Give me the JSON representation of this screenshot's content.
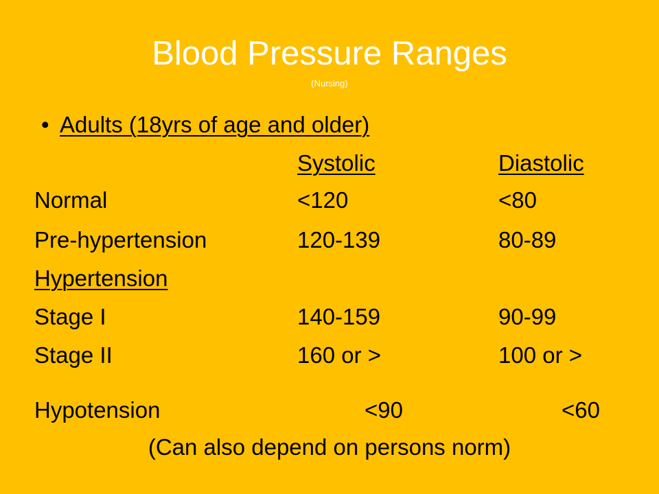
{
  "title": "Blood Pressure Ranges",
  "subtitle": "(Nursing)",
  "bullet": "•",
  "heading": "Adults (18yrs of age and older)",
  "columns": {
    "systolic": "Systolic",
    "diastolic": "Diastolic"
  },
  "rows": [
    {
      "label": "Normal",
      "systolic": "<120",
      "diastolic": "<80"
    },
    {
      "label": "Pre-hypertension",
      "systolic": "120-139",
      "diastolic": "80-89"
    },
    {
      "label": "Hypertension",
      "systolic": "",
      "diastolic": ""
    },
    {
      "label": "Stage I",
      "systolic": "140-159",
      "diastolic": "90-99"
    },
    {
      "label": "Stage II",
      "systolic": "160 or >",
      "diastolic": "100 or >"
    }
  ],
  "hypotension": {
    "label": "Hypotension",
    "systolic": "<90",
    "diastolic": "<60"
  },
  "note": "(Can also depend on persons norm)",
  "colors": {
    "background": "#FFC000",
    "title": "#FFFFFF",
    "text": "#000000"
  }
}
